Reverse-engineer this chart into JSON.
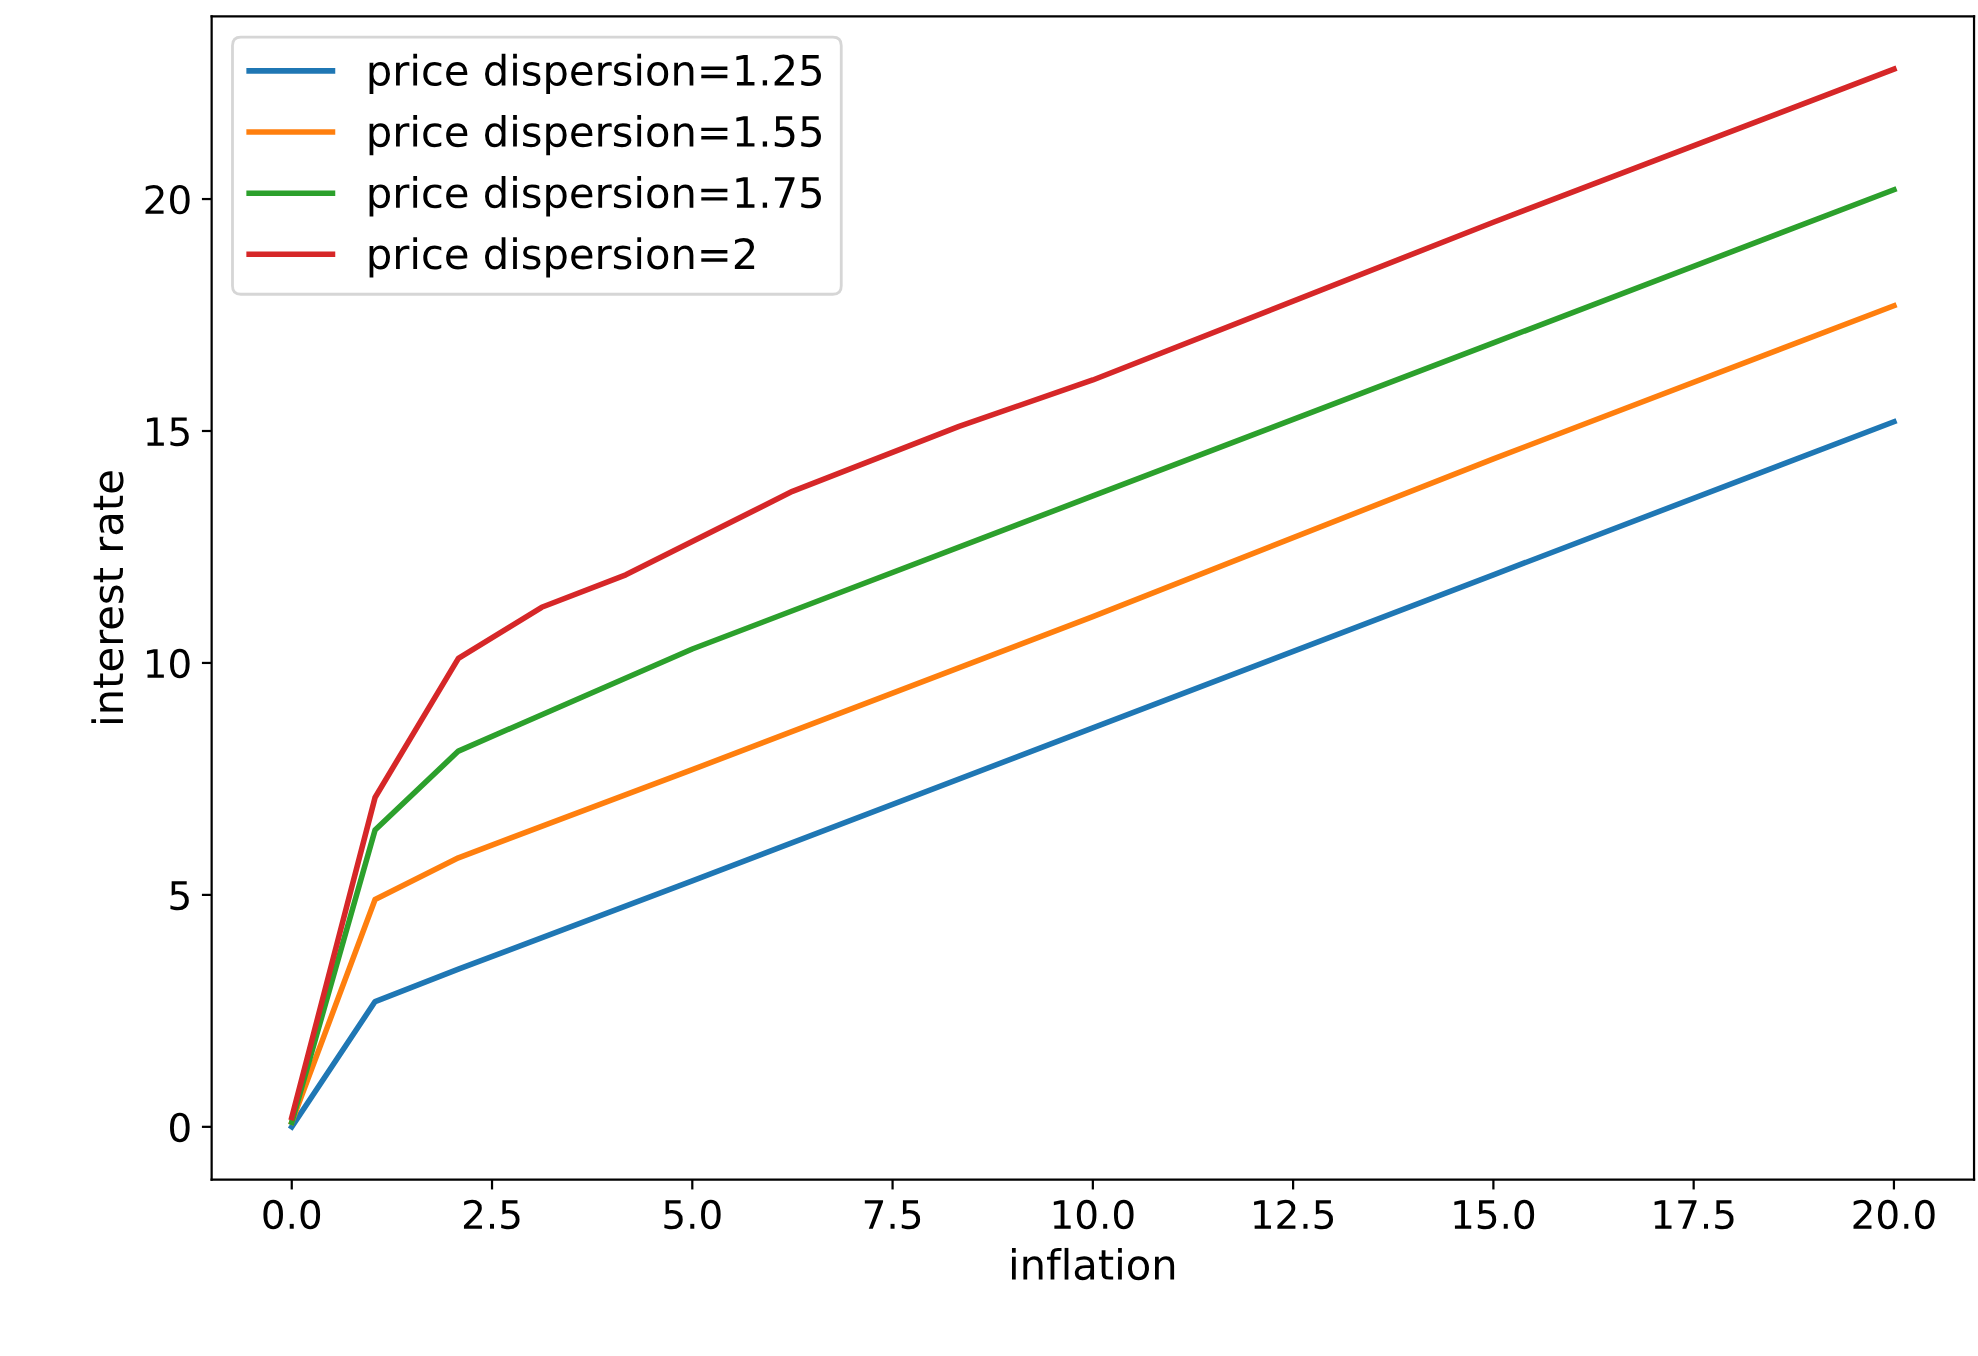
{
  "chart_data": {
    "type": "line",
    "xlabel": "inflation",
    "ylabel": "interest rate",
    "xlim": [
      -1.0,
      21.0
    ],
    "ylim": [
      -1.14,
      23.94
    ],
    "xticks": [
      {
        "value": 0,
        "label": "0.0"
      },
      {
        "value": 2.5,
        "label": "2.5"
      },
      {
        "value": 5,
        "label": "5.0"
      },
      {
        "value": 7.5,
        "label": "7.5"
      },
      {
        "value": 10,
        "label": "10.0"
      },
      {
        "value": 12.5,
        "label": "12.5"
      },
      {
        "value": 15,
        "label": "15.0"
      },
      {
        "value": 17.5,
        "label": "17.5"
      },
      {
        "value": 20,
        "label": "20.0"
      }
    ],
    "yticks": [
      0,
      5,
      10,
      15,
      20
    ],
    "grid": false,
    "legend": "top left",
    "series": [
      {
        "name": "price dispersion=1.25",
        "color": "#1f77b4",
        "x": [
          0,
          1.04,
          2.08,
          5,
          10,
          15,
          20
        ],
        "values": [
          0.0,
          2.7,
          3.4,
          5.3,
          8.6,
          11.9,
          15.2
        ]
      },
      {
        "name": "price dispersion=1.55",
        "color": "#ff7f0e",
        "x": [
          0,
          1.04,
          2.08,
          5,
          10,
          15,
          20
        ],
        "values": [
          0.1,
          4.9,
          5.8,
          7.7,
          11.0,
          14.4,
          17.7
        ]
      },
      {
        "name": "price dispersion=1.75",
        "color": "#2ca02c",
        "x": [
          0,
          1.04,
          2.08,
          5,
          10,
          15,
          20
        ],
        "values": [
          0.1,
          6.4,
          8.1,
          10.3,
          13.6,
          16.9,
          20.2
        ]
      },
      {
        "name": "price dispersion=2",
        "color": "#d62728",
        "x": [
          0,
          1.04,
          2.08,
          3.12,
          4.17,
          6.25,
          8.33,
          10,
          15,
          20
        ],
        "values": [
          0.2,
          7.1,
          10.1,
          11.2,
          11.9,
          13.7,
          15.1,
          16.1,
          19.5,
          22.8
        ]
      }
    ]
  }
}
